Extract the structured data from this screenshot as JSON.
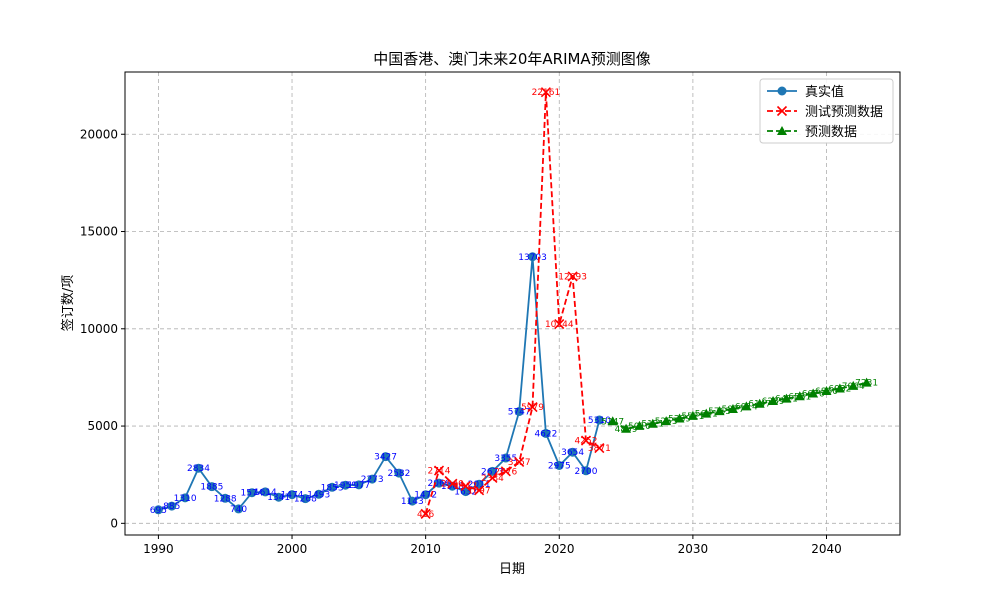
{
  "chart_data": {
    "type": "line",
    "title": "中国香港、澳门未来20年ARIMA预测图像",
    "xlabel": "日期",
    "ylabel": "签订数/项",
    "xlim": [
      1987.5,
      2045.5
    ],
    "ylim": [
      -600,
      23200
    ],
    "x_ticks": [
      1990,
      2000,
      2010,
      2020,
      2030,
      2040
    ],
    "y_ticks": [
      0,
      5000,
      10000,
      15000,
      20000
    ],
    "grid": true,
    "legend_position": "top-right",
    "series": [
      {
        "name": "真实值",
        "color": "#1f77b4",
        "marker": "circle",
        "line_style": "solid",
        "label_color": "#0000ff",
        "x": [
          1990,
          1991,
          1992,
          1993,
          1994,
          1995,
          1996,
          1997,
          1998,
          1999,
          2000,
          2001,
          2002,
          2003,
          2004,
          2005,
          2006,
          2007,
          2008,
          2009,
          2010,
          2011,
          2012,
          2013,
          2014,
          2015,
          2016,
          2017,
          2018,
          2019,
          2020,
          2021,
          2022,
          2023
        ],
        "values": [
          695,
          885,
          1310,
          2834,
          1885,
          1288,
          740,
          1574,
          1614,
          1341,
          1474,
          1268,
          1493,
          1853,
          1959,
          1977,
          2273,
          3427,
          2582,
          1143,
          1472,
          2066,
          1908,
          1632,
          2011,
          2673,
          3355,
          5747,
          13703,
          4622,
          2975,
          3654,
          2700,
          5310
        ],
        "labels": [
          "695",
          "885",
          "1310",
          "2834",
          "1885",
          "1288",
          "740",
          "1574",
          "1614",
          "1341",
          "1474",
          "1268",
          "1493",
          "1853",
          "1959",
          "1977",
          "2273",
          "3427",
          "2582",
          "1143",
          "1472",
          "2066",
          "1908",
          "1632",
          "2011",
          "2673",
          "3355",
          "5747",
          "13703",
          "4622",
          "2975",
          "3654",
          "2700",
          "5310"
        ]
      },
      {
        "name": "测试预测数据",
        "color": "#ff0000",
        "marker": "x",
        "line_style": "dashed",
        "label_color": "#ff0000",
        "x": [
          2010,
          2011,
          2012,
          2013,
          2014,
          2015,
          2016,
          2017,
          2018,
          2019,
          2020,
          2021,
          2022,
          2023
        ],
        "values": [
          486,
          2714,
          2040,
          1917,
          1697,
          2334,
          2676,
          3157,
          5979,
          22161,
          10244,
          12693,
          4252,
          3871
        ],
        "labels": [
          "486",
          "2714",
          "2040",
          "1917",
          "1697",
          "2334",
          "2676",
          "3157",
          "5979",
          "22161",
          "10244",
          "12693",
          "4252",
          "3871"
        ]
      },
      {
        "name": "预测数据",
        "color": "#008000",
        "marker": "triangle",
        "line_style": "dashed",
        "label_color": "#008000",
        "x": [
          2024,
          2025,
          2026,
          2027,
          2028,
          2029,
          2030,
          2031,
          2032,
          2033,
          2034,
          2035,
          2036,
          2037,
          2038,
          2039,
          2040,
          2041,
          2042,
          2043
        ],
        "values": [
          5247,
          4859,
          5010,
          5121,
          5253,
          5389,
          5521,
          5641,
          5765,
          5877,
          6014,
          6147,
          6289,
          6411,
          6531,
          6676,
          6800,
          6932,
          7064,
          7231
        ],
        "labels": [
          "5247",
          "4859",
          "5010",
          "5121",
          "5253",
          "5389",
          "5521",
          "5641",
          "5765",
          "5877",
          "6014",
          "6147",
          "6289",
          "6411",
          "6531",
          "6676",
          "6800",
          "6932",
          "7064",
          "7231"
        ]
      }
    ]
  }
}
